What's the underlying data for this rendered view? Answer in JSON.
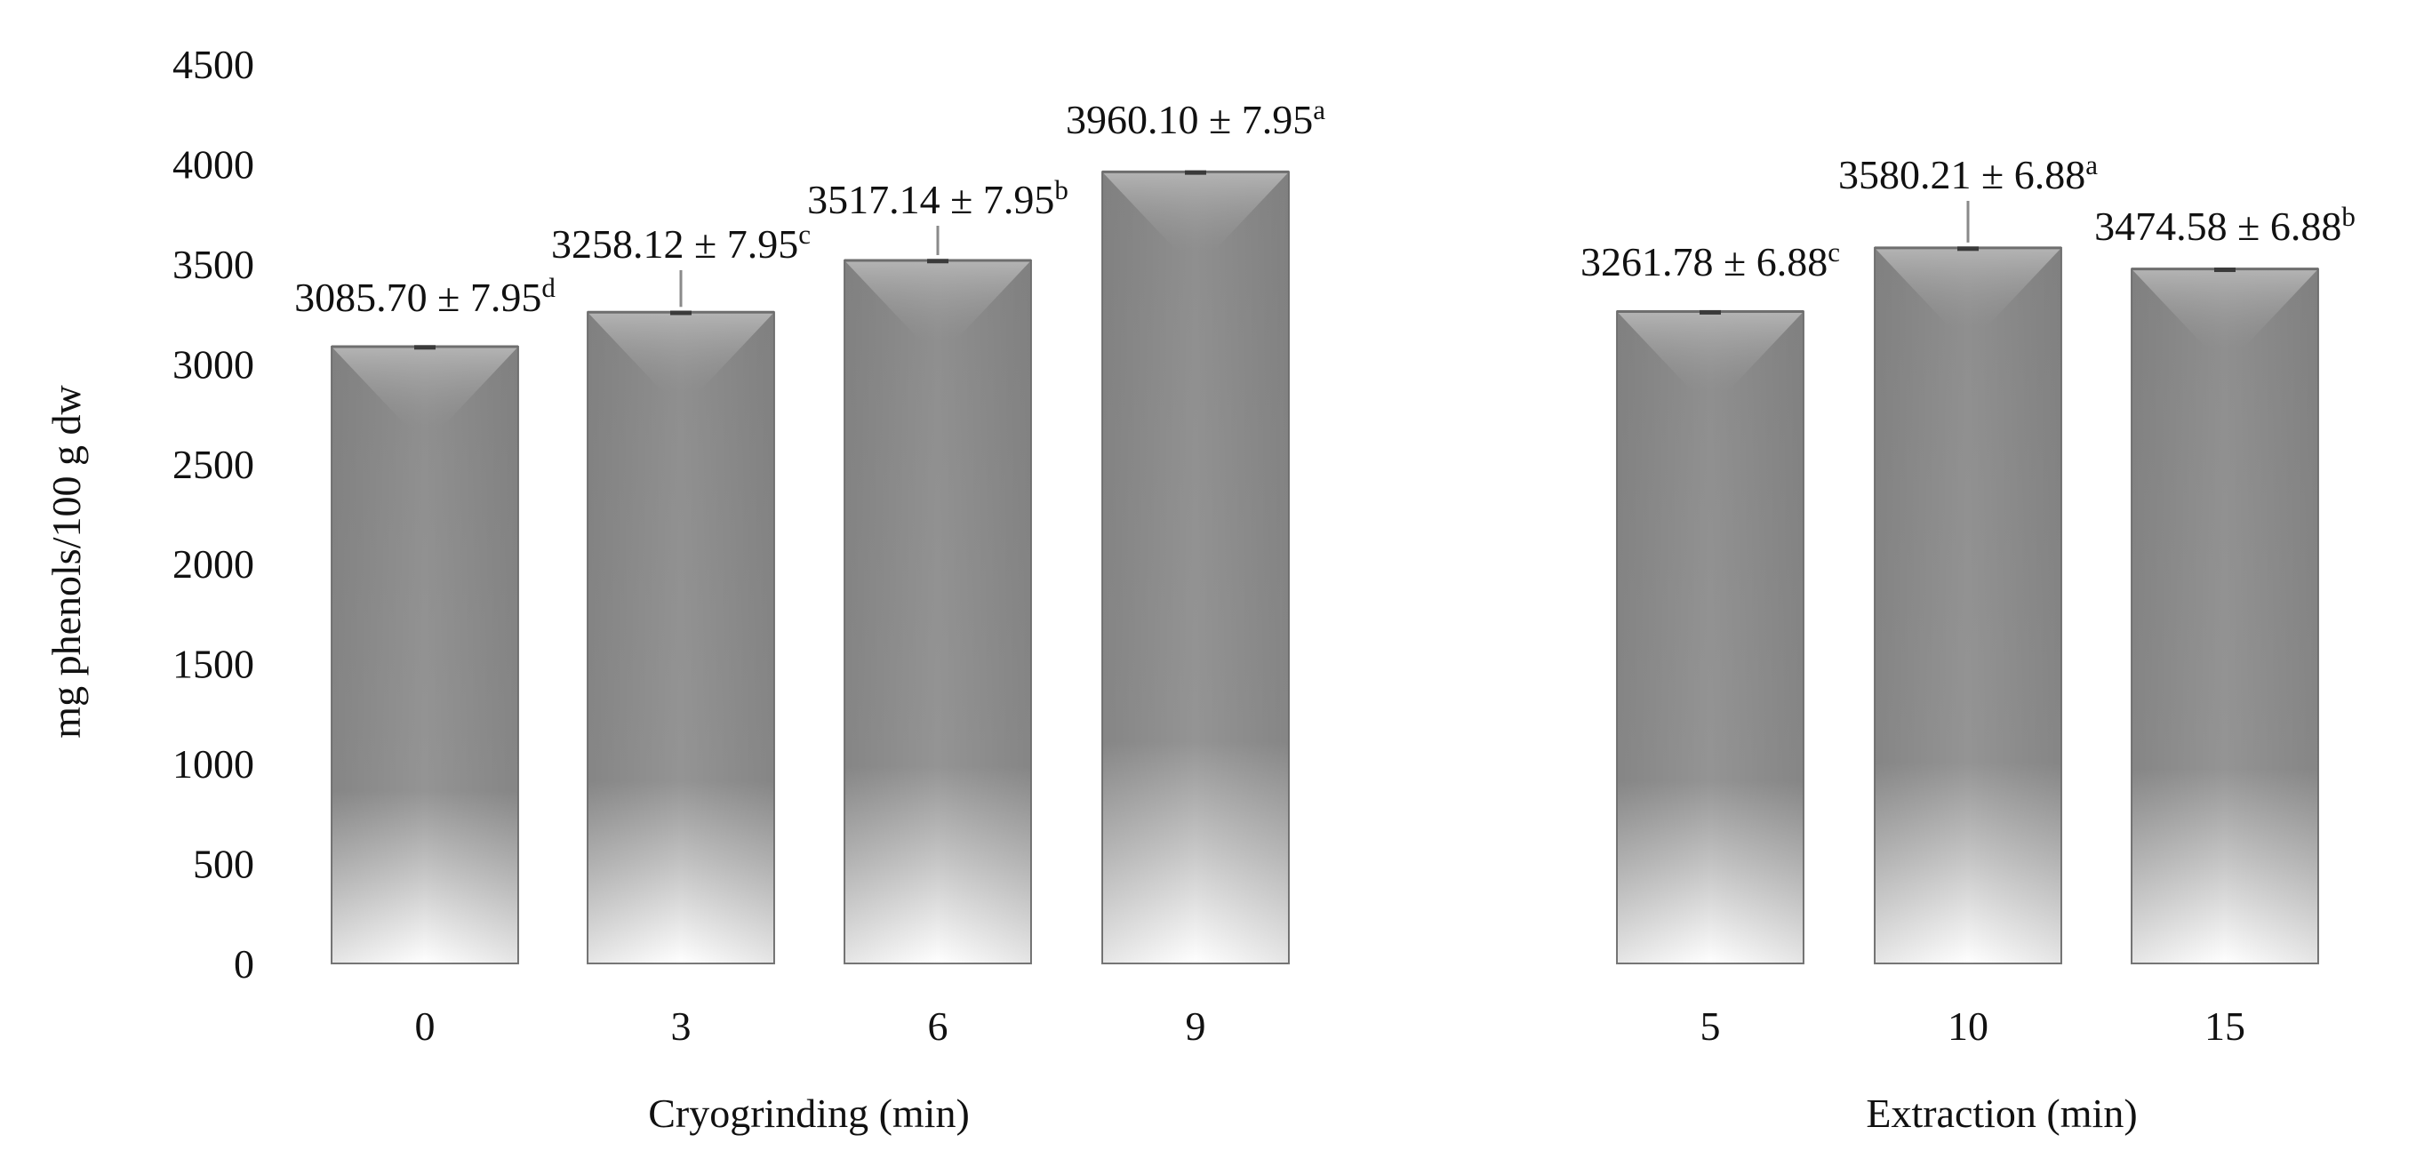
{
  "chart_data": {
    "type": "bar",
    "ylabel": "mg phenols/100 g dw",
    "ylim": [
      0,
      4500
    ],
    "yticks": [
      "0",
      "500",
      "1000",
      "1500",
      "2000",
      "2500",
      "3000",
      "3500",
      "4000",
      "4500"
    ],
    "grid": false,
    "legend": "none",
    "bar_color": "#8c8c8c",
    "groups": [
      {
        "xlabel": "Cryogrinding (min)",
        "categories": [
          "0",
          "3",
          "6",
          "9"
        ],
        "values": [
          3085.7,
          3258.12,
          3517.14,
          3960.1
        ],
        "errors": [
          7.95,
          7.95,
          7.95,
          7.95
        ],
        "labels": [
          "3085.70 ± 7.95",
          "3258.12 ± 7.95",
          "3517.14 ± 7.95",
          "3960.10 ± 7.95"
        ],
        "letters": [
          "d",
          "c",
          "b",
          "a"
        ]
      },
      {
        "xlabel": "Extraction (min)",
        "categories": [
          "5",
          "10",
          "15"
        ],
        "values": [
          3261.78,
          3580.21,
          3474.58
        ],
        "errors": [
          6.88,
          6.88,
          6.88
        ],
        "labels": [
          "3261.78 ± 6.88",
          "3580.21 ± 6.88",
          "3474.58 ± 6.88"
        ],
        "letters": [
          "c",
          "a",
          "b"
        ]
      }
    ]
  }
}
